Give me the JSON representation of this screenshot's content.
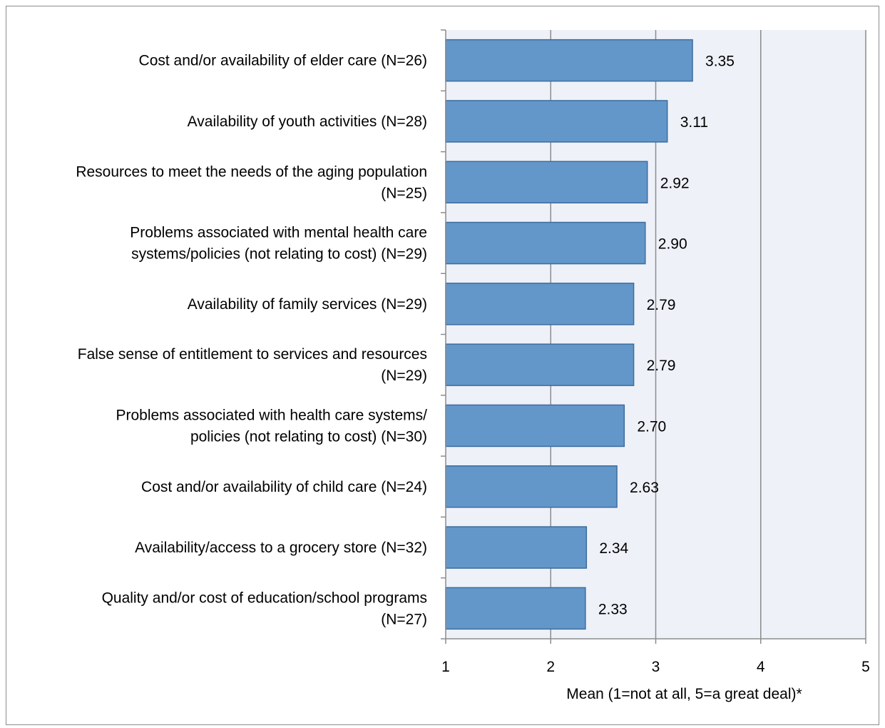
{
  "chart_data": {
    "type": "bar",
    "orientation": "horizontal",
    "categories": [
      "Cost and/or availability of elder care (N=26)",
      "Availability of youth activities (N=28)",
      "Resources to meet the needs of the aging population (N=25)",
      "Problems associated with mental health care systems/policies (not relating to cost) (N=29)",
      "Availability of family services (N=29)",
      "False sense of entitlement to services and resources (N=29)",
      "Problems associated with health care systems/ policies (not relating to cost) (N=30)",
      "Cost and/or availability of child care (N=24)",
      "Availability/access to a grocery store (N=32)",
      "Quality and/or cost of education/school programs (N=27)"
    ],
    "category_lines": [
      [
        "Cost and/or availability of elder care (N=26)"
      ],
      [
        "Availability of youth activities (N=28)"
      ],
      [
        "Resources to meet the needs of the aging population",
        "(N=25)"
      ],
      [
        "Problems associated with mental health care",
        "systems/policies (not relating to cost) (N=29)"
      ],
      [
        "Availability of family services (N=29)"
      ],
      [
        "False sense of entitlement to services and resources",
        "(N=29)"
      ],
      [
        "Problems associated with health care systems/",
        "policies (not relating to cost) (N=30)"
      ],
      [
        "Cost and/or availability of child care (N=24)"
      ],
      [
        "Availability/access to a grocery store (N=32)"
      ],
      [
        "Quality and/or cost of education/school programs",
        "(N=27)"
      ]
    ],
    "values": [
      3.35,
      3.11,
      2.92,
      2.9,
      2.79,
      2.79,
      2.7,
      2.63,
      2.34,
      2.33
    ],
    "value_labels": [
      "3.35",
      "3.11",
      "2.92",
      "2.90",
      "2.79",
      "2.79",
      "2.70",
      "2.63",
      "2.34",
      "2.33"
    ],
    "xlabel": "Mean (1=not at all, 5=a great deal)*",
    "xlim": [
      1,
      5
    ],
    "xticks": [
      "1",
      "2",
      "3",
      "4",
      "5"
    ],
    "grid": true,
    "colors": {
      "bar_fill": "#6397c9",
      "bar_stroke": "#3e6c9e",
      "plot_bg": "#eef1f8",
      "grid": "#8c8c8c",
      "axis": "#8c8c8c"
    }
  }
}
